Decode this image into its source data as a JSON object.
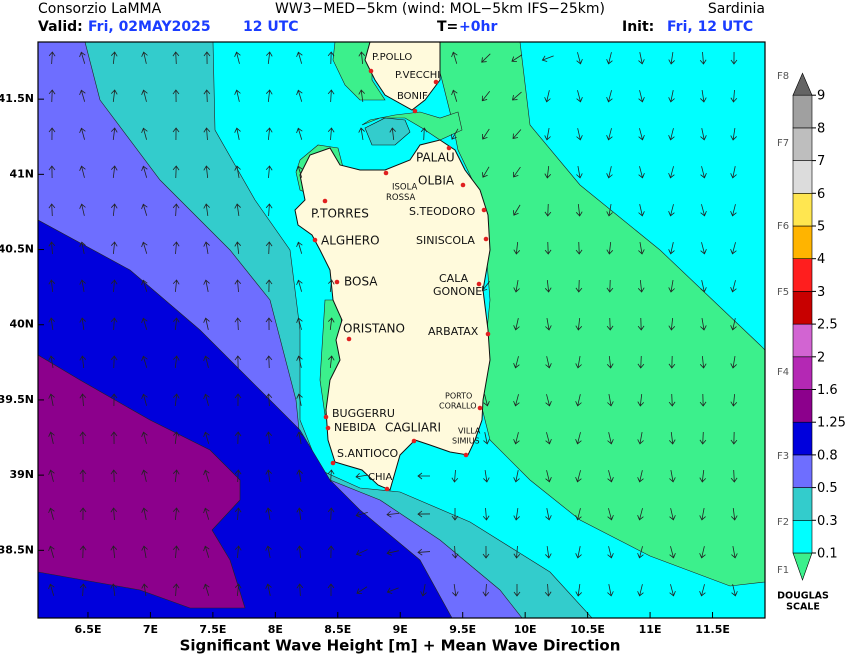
{
  "header": {
    "org": "Consorzio LaMMA",
    "model": "WW3−MED−5km (wind: MOL−5km IFS−25km)",
    "region": "Sardinia",
    "valid_label": "Valid:",
    "valid_date": "Fri, 02MAY2025",
    "valid_time": "12 UTC",
    "step_label": "T=",
    "step": "+0hr",
    "init_label": "Init:",
    "init": "Fri, 12 UTC"
  },
  "map": {
    "lon_range": [
      6.1,
      11.92
    ],
    "lat_range": [
      38.05,
      41.88
    ],
    "lon_ticks": [
      {
        "value": 6.5,
        "label": "6.5E"
      },
      {
        "value": 7,
        "label": "7E"
      },
      {
        "value": 7.5,
        "label": "7.5E"
      },
      {
        "value": 8,
        "label": "8E"
      },
      {
        "value": 8.5,
        "label": "8.5E"
      },
      {
        "value": 9,
        "label": "9E"
      },
      {
        "value": 9.5,
        "label": "9.5E"
      },
      {
        "value": 10,
        "label": "10E"
      },
      {
        "value": 10.5,
        "label": "10.5E"
      },
      {
        "value": 11,
        "label": "11E"
      },
      {
        "value": 11.5,
        "label": "11.5E"
      }
    ],
    "lat_ticks": [
      {
        "value": 41.5,
        "label": "41.5N"
      },
      {
        "value": 41,
        "label": "41N"
      },
      {
        "value": 40.5,
        "label": "40.5N"
      },
      {
        "value": 40,
        "label": "40N"
      },
      {
        "value": 39.5,
        "label": "39.5N"
      },
      {
        "value": 39,
        "label": "39N"
      },
      {
        "value": 38.5,
        "label": "38.5N"
      }
    ],
    "places": [
      {
        "label": [
          "P.POLLO"
        ]
      },
      {
        "label": [
          "P.VECCHI"
        ]
      },
      {
        "label": [
          "BONIF"
        ]
      },
      {
        "label": [
          "PALAU"
        ]
      },
      {
        "label": [
          "ISOLA",
          "ROSSA"
        ]
      },
      {
        "label": [
          "OLBIA"
        ]
      },
      {
        "label": [
          "P.TORRES"
        ]
      },
      {
        "label": [
          "S.TEODORO"
        ]
      },
      {
        "label": [
          "ALGHERO"
        ]
      },
      {
        "label": [
          "SINISCOLA"
        ]
      },
      {
        "label": [
          "BOSA"
        ]
      },
      {
        "label": [
          "CALA",
          "GONONE"
        ]
      },
      {
        "label": [
          "ORISTANO"
        ]
      },
      {
        "label": [
          "ARBATAX"
        ]
      },
      {
        "label": [
          "PORTO",
          "CORALLO"
        ]
      },
      {
        "label": [
          "BUGGERRU"
        ]
      },
      {
        "label": [
          "NEBIDA"
        ]
      },
      {
        "label": [
          "CAGLIARI"
        ]
      },
      {
        "label": [
          "VILLA",
          "SIMIUS"
        ]
      },
      {
        "label": [
          "S.ANTIOCO"
        ]
      },
      {
        "label": [
          "CHIA"
        ]
      }
    ]
  },
  "colorbar": {
    "levels": [
      0.1,
      0.3,
      0.5,
      0.8,
      1.25,
      1.6,
      2,
      2.5,
      3,
      4,
      5,
      6,
      7,
      8,
      9
    ],
    "colors": [
      "#3cf08c",
      "#00ffff",
      "#33cccc",
      "#6e6eff",
      "#0000dc",
      "#8c008c",
      "#b428b4",
      "#d264d2",
      "#c80000",
      "#ff1e1e",
      "#ffb400",
      "#ffe650",
      "#dcdcdc",
      "#bebebe",
      "#a0a0a0",
      "#646464"
    ],
    "douglas": [
      "F1",
      "F2",
      "F3",
      "F4",
      "F5",
      "F6",
      "F7",
      "F8"
    ],
    "douglas_title": [
      "DOUGLAS",
      "SCALE"
    ]
  },
  "caption": "Significant Wave Height [m] + Mean Wave Direction"
}
